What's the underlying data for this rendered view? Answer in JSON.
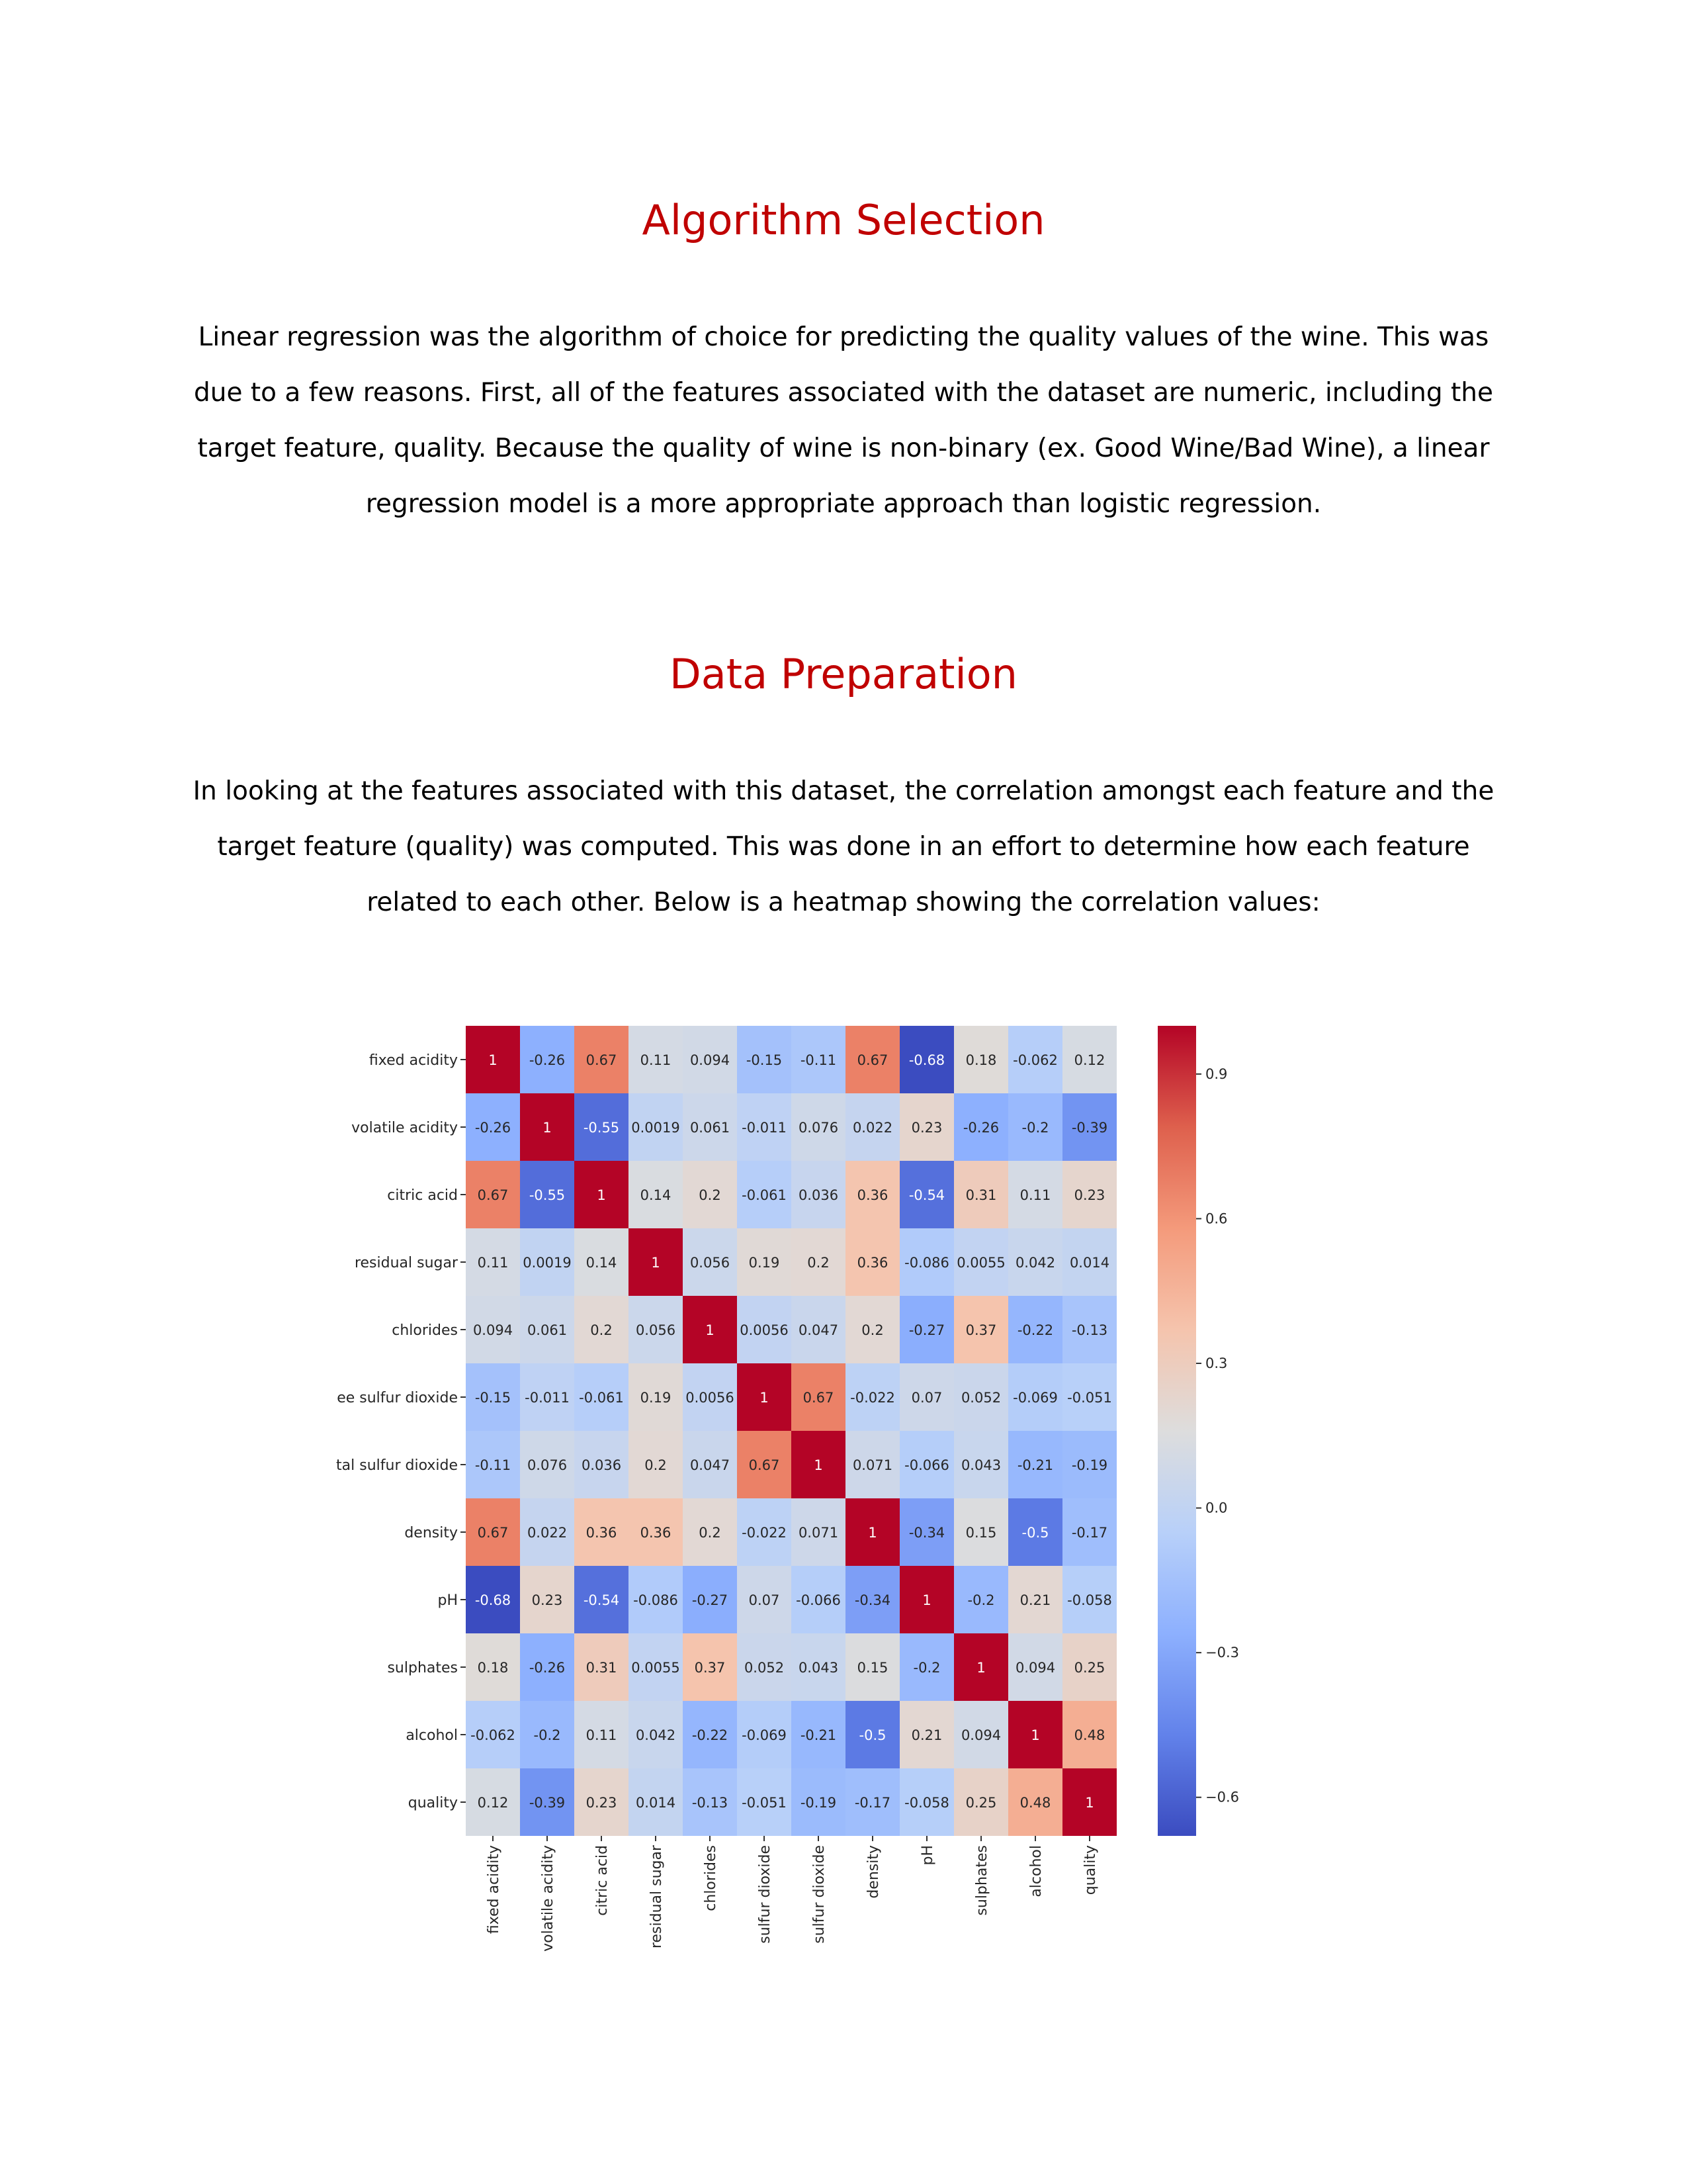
{
  "sections": [
    {
      "heading": "Algorithm Selection",
      "paragraph": "Linear regression was the algorithm of choice for predicting the quality values of the wine. This was due to a few reasons. First, all of the features associated with the dataset are numeric, including the target feature, quality. Because the quality of wine is non-binary (ex. Good Wine/Bad Wine), a linear regression model is a more appropriate approach than logistic regression."
    },
    {
      "heading": "Data Preparation",
      "paragraph": "In looking at the features associated with this dataset, the correlation amongst each feature and the target feature (quality) was computed. This was done in an effort to determine how each feature related to each other. Below is a heatmap showing the correlation values:"
    }
  ],
  "chart_data": {
    "type": "heatmap",
    "colormap": "coolwarm",
    "vmin": -0.68,
    "vmax": 1,
    "colorbar_ticks": [
      "0.9",
      "0.6",
      "0.3",
      "0.0",
      "−0.3",
      "−0.6"
    ],
    "colorbar_tick_values": [
      0.9,
      0.6,
      0.3,
      0.0,
      -0.3,
      -0.6
    ],
    "row_labels": [
      "fixed acidity",
      "volatile acidity",
      "citric acid",
      "residual sugar",
      "chlorides",
      "ee sulfur dioxide",
      "tal sulfur dioxide",
      "density",
      "pH",
      "sulphates",
      "alcohol",
      "quality"
    ],
    "col_labels": [
      "fixed acidity",
      "volatile acidity",
      "citric acid",
      "residual sugar",
      "chlorides",
      "sulfur dioxide",
      "sulfur dioxide",
      "density",
      "pH",
      "sulphates",
      "alcohol",
      "quality"
    ],
    "values": [
      [
        1,
        -0.26,
        0.67,
        0.11,
        0.094,
        -0.15,
        -0.11,
        0.67,
        -0.68,
        0.18,
        -0.062,
        0.12
      ],
      [
        -0.26,
        1,
        -0.55,
        0.0019,
        0.061,
        -0.011,
        0.076,
        0.022,
        0.23,
        -0.26,
        -0.2,
        -0.39
      ],
      [
        0.67,
        -0.55,
        1,
        0.14,
        0.2,
        -0.061,
        0.036,
        0.36,
        -0.54,
        0.31,
        0.11,
        0.23
      ],
      [
        0.11,
        0.0019,
        0.14,
        1,
        0.056,
        0.19,
        0.2,
        0.36,
        -0.086,
        0.0055,
        0.042,
        0.014
      ],
      [
        0.094,
        0.061,
        0.2,
        0.056,
        1,
        0.0056,
        0.047,
        0.2,
        -0.27,
        0.37,
        -0.22,
        -0.13
      ],
      [
        -0.15,
        -0.011,
        -0.061,
        0.19,
        0.0056,
        1,
        0.67,
        -0.022,
        0.07,
        0.052,
        -0.069,
        -0.051
      ],
      [
        -0.11,
        0.076,
        0.036,
        0.2,
        0.047,
        0.67,
        1,
        0.071,
        -0.066,
        0.043,
        -0.21,
        -0.19
      ],
      [
        0.67,
        0.022,
        0.36,
        0.36,
        0.2,
        -0.022,
        0.071,
        1,
        -0.34,
        0.15,
        -0.5,
        -0.17
      ],
      [
        -0.68,
        0.23,
        -0.54,
        -0.086,
        -0.27,
        0.07,
        -0.066,
        -0.34,
        1,
        -0.2,
        0.21,
        -0.058
      ],
      [
        0.18,
        -0.26,
        0.31,
        0.0055,
        0.37,
        0.052,
        0.043,
        0.15,
        -0.2,
        1,
        0.094,
        0.25
      ],
      [
        -0.062,
        -0.2,
        0.11,
        0.042,
        -0.22,
        -0.069,
        -0.21,
        -0.5,
        0.21,
        0.094,
        1,
        0.48
      ],
      [
        0.12,
        -0.39,
        0.23,
        0.014,
        -0.13,
        -0.051,
        -0.19,
        -0.17,
        -0.058,
        0.25,
        0.48,
        1
      ]
    ],
    "annotations": [
      [
        "1",
        "-0.26",
        "0.67",
        "0.11",
        "0.094",
        "-0.15",
        "-0.11",
        "0.67",
        "-0.68",
        "0.18",
        "-0.062",
        "0.12"
      ],
      [
        "-0.26",
        "1",
        "-0.55",
        "0.0019",
        "0.061",
        "-0.011",
        "0.076",
        "0.022",
        "0.23",
        "-0.26",
        "-0.2",
        "-0.39"
      ],
      [
        "0.67",
        "-0.55",
        "1",
        "0.14",
        "0.2",
        "-0.061",
        "0.036",
        "0.36",
        "-0.54",
        "0.31",
        "0.11",
        "0.23"
      ],
      [
        "0.11",
        "0.0019",
        "0.14",
        "1",
        "0.056",
        "0.19",
        "0.2",
        "0.36",
        "-0.086",
        "0.0055",
        "0.042",
        "0.014"
      ],
      [
        "0.094",
        "0.061",
        "0.2",
        "0.056",
        "1",
        "0.0056",
        "0.047",
        "0.2",
        "-0.27",
        "0.37",
        "-0.22",
        "-0.13"
      ],
      [
        "-0.15",
        "-0.011",
        "-0.061",
        "0.19",
        "0.0056",
        "1",
        "0.67",
        "-0.022",
        "0.07",
        "0.052",
        "-0.069",
        "-0.051"
      ],
      [
        "-0.11",
        "0.076",
        "0.036",
        "0.2",
        "0.047",
        "0.67",
        "1",
        "0.071",
        "-0.066",
        "0.043",
        "-0.21",
        "-0.19"
      ],
      [
        "0.67",
        "0.022",
        "0.36",
        "0.36",
        "0.2",
        "-0.022",
        "0.071",
        "1",
        "-0.34",
        "0.15",
        "-0.5",
        "-0.17"
      ],
      [
        "-0.68",
        "0.23",
        "-0.54",
        "-0.086",
        "-0.27",
        "0.07",
        "-0.066",
        "-0.34",
        "1",
        "-0.2",
        "0.21",
        "-0.058"
      ],
      [
        "0.18",
        "-0.26",
        "0.31",
        "0.0055",
        "0.37",
        "0.052",
        "0.043",
        "0.15",
        "-0.2",
        "1",
        "0.094",
        "0.25"
      ],
      [
        "-0.062",
        "-0.2",
        "0.11",
        "0.042",
        "-0.22",
        "-0.069",
        "-0.21",
        "-0.5",
        "0.21",
        "0.094",
        "1",
        "0.48"
      ],
      [
        "0.12",
        "-0.39",
        "0.23",
        "0.014",
        "-0.13",
        "-0.051",
        "-0.19",
        "-0.17",
        "-0.058",
        "0.25",
        "0.48",
        "1"
      ]
    ]
  }
}
